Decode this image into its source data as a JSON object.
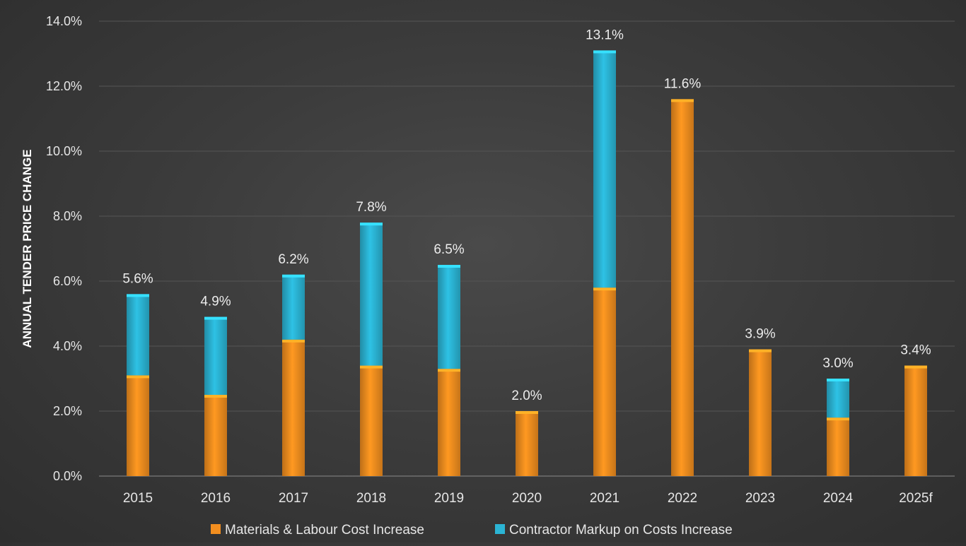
{
  "chart_data": {
    "type": "bar",
    "stacked": true,
    "title": "",
    "xlabel": "",
    "ylabel": "ANNUAL TENDER PRICE CHANGE",
    "ylim": [
      0,
      14
    ],
    "y_ticks": [
      0,
      2,
      4,
      6,
      8,
      10,
      12,
      14
    ],
    "y_tick_labels": [
      "0.0%",
      "2.0%",
      "4.0%",
      "6.0%",
      "8.0%",
      "10.0%",
      "12.0%",
      "14.0%"
    ],
    "grid": true,
    "legend_position": "bottom",
    "categories": [
      "2015",
      "2016",
      "2017",
      "2018",
      "2019",
      "2020",
      "2021",
      "2022",
      "2023",
      "2024",
      "2025f"
    ],
    "series": [
      {
        "name": "Materials & Labour Cost Increase",
        "color": "#f28e1f",
        "values": [
          3.1,
          2.5,
          4.2,
          3.4,
          3.3,
          2.0,
          5.8,
          11.6,
          3.9,
          1.8,
          3.4
        ]
      },
      {
        "name": "Contractor Markup on Costs Increase",
        "color": "#2bb4d4",
        "values": [
          2.5,
          2.4,
          2.0,
          4.4,
          3.2,
          0.0,
          7.3,
          0.0,
          0.0,
          1.2,
          0.0
        ]
      }
    ],
    "total_labels": [
      "5.6%",
      "4.9%",
      "6.2%",
      "7.8%",
      "6.5%",
      "2.0%",
      "13.1%",
      "11.6%",
      "3.9%",
      "3.0%",
      "3.4%"
    ]
  }
}
